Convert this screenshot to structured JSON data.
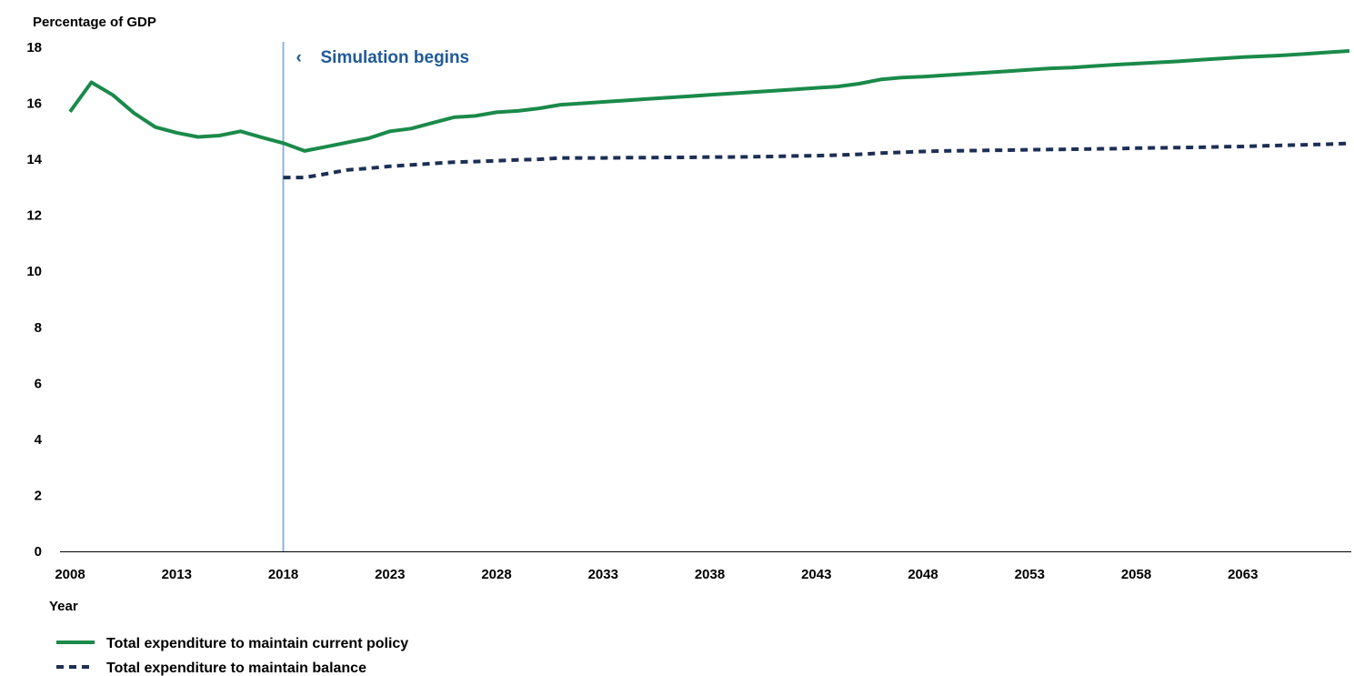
{
  "chart_data": {
    "type": "line",
    "ylabel": "Percentage of GDP",
    "xlabel": "Year",
    "ylim": [
      0,
      18
    ],
    "xlim": [
      2008,
      2068
    ],
    "y_ticks": [
      0,
      2,
      4,
      6,
      8,
      10,
      12,
      14,
      16,
      18
    ],
    "x_ticks": [
      2008,
      2013,
      2018,
      2023,
      2028,
      2033,
      2038,
      2043,
      2048,
      2053,
      2058,
      2063
    ],
    "grid": false,
    "legend_position": "bottom-left",
    "annotation": {
      "x": 2018,
      "marker": "‹",
      "text": "Simulation begins"
    },
    "series": [
      {
        "name": "Total expenditure to maintain current policy",
        "style": "solid",
        "color": "#1a8a4a",
        "x": [
          2008,
          2009,
          2010,
          2011,
          2012,
          2013,
          2014,
          2015,
          2016,
          2017,
          2018,
          2019,
          2020,
          2021,
          2022,
          2023,
          2024,
          2025,
          2026,
          2027,
          2028,
          2029,
          2030,
          2031,
          2032,
          2033,
          2034,
          2035,
          2036,
          2037,
          2038,
          2039,
          2040,
          2041,
          2042,
          2043,
          2044,
          2045,
          2046,
          2047,
          2048,
          2049,
          2050,
          2051,
          2052,
          2053,
          2054,
          2055,
          2056,
          2057,
          2058,
          2059,
          2060,
          2061,
          2062,
          2063,
          2064,
          2065,
          2066,
          2067,
          2068
        ],
        "y": [
          15.7,
          16.75,
          16.3,
          15.65,
          15.15,
          14.95,
          14.8,
          14.85,
          15.0,
          14.78,
          14.58,
          14.3,
          14.45,
          14.6,
          14.75,
          15.0,
          15.1,
          15.3,
          15.5,
          15.55,
          15.68,
          15.73,
          15.82,
          15.95,
          16.0,
          16.05,
          16.1,
          16.15,
          16.2,
          16.25,
          16.3,
          16.35,
          16.4,
          16.45,
          16.5,
          16.55,
          16.6,
          16.7,
          16.85,
          16.92,
          16.95,
          17.0,
          17.05,
          17.1,
          17.15,
          17.2,
          17.25,
          17.28,
          17.33,
          17.38,
          17.42,
          17.46,
          17.5,
          17.55,
          17.6,
          17.65,
          17.68,
          17.72,
          17.77,
          17.82,
          17.87
        ]
      },
      {
        "name": "Total expenditure to maintain balance",
        "style": "dashed",
        "color": "#1c2f54",
        "x": [
          2018,
          2019,
          2020,
          2021,
          2022,
          2023,
          2024,
          2025,
          2026,
          2027,
          2028,
          2029,
          2030,
          2031,
          2032,
          2033,
          2034,
          2035,
          2036,
          2037,
          2038,
          2039,
          2040,
          2041,
          2042,
          2043,
          2044,
          2045,
          2046,
          2047,
          2048,
          2049,
          2050,
          2051,
          2052,
          2053,
          2054,
          2055,
          2056,
          2057,
          2058,
          2059,
          2060,
          2061,
          2062,
          2063,
          2064,
          2065,
          2066,
          2067,
          2068
        ],
        "y": [
          13.35,
          13.35,
          13.48,
          13.62,
          13.68,
          13.75,
          13.8,
          13.85,
          13.9,
          13.92,
          13.95,
          13.98,
          14.0,
          14.05,
          14.05,
          14.05,
          14.06,
          14.06,
          14.07,
          14.07,
          14.08,
          14.08,
          14.09,
          14.1,
          14.12,
          14.13,
          14.15,
          14.18,
          14.22,
          14.25,
          14.28,
          14.3,
          14.31,
          14.32,
          14.33,
          14.34,
          14.35,
          14.36,
          14.37,
          14.38,
          14.4,
          14.41,
          14.42,
          14.43,
          14.45,
          14.46,
          14.48,
          14.5,
          14.52,
          14.54,
          14.57
        ]
      }
    ]
  },
  "colors": {
    "current_policy": "#1a8a4a",
    "balance": "#1c2f54",
    "simulation_line": "#8fb3d6",
    "annotation_text": "#1f5a99"
  }
}
